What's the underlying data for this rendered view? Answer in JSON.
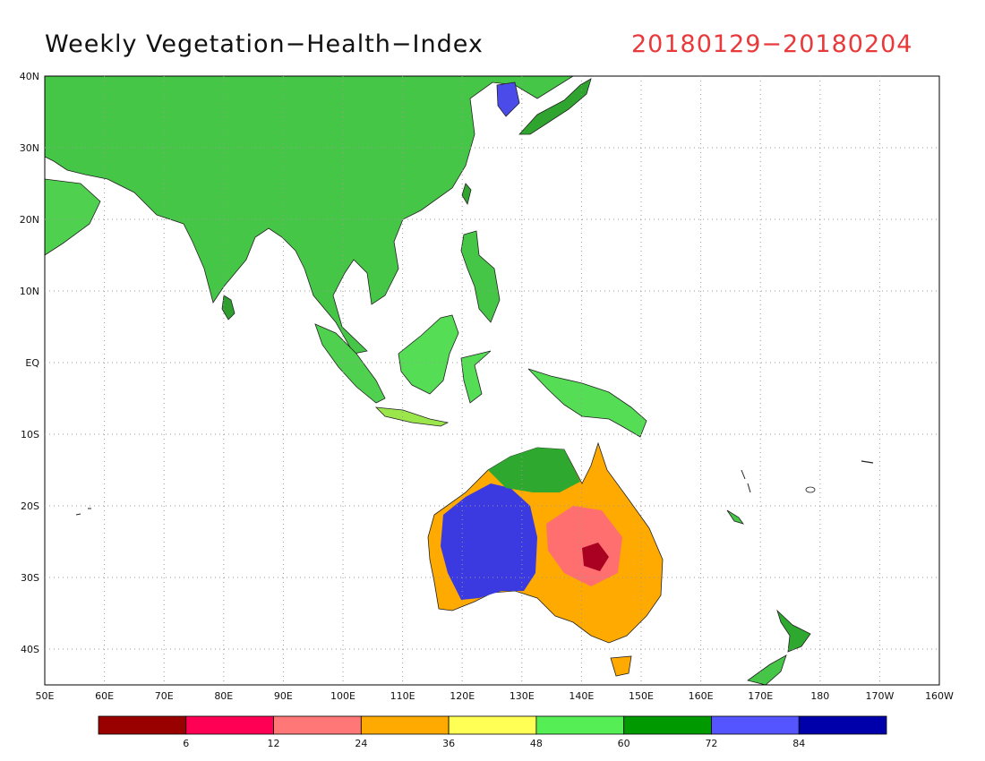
{
  "title": "Weekly Vegetation−Health−Index",
  "date_range": "20180129−20180204",
  "axes": {
    "lon_ticks": [
      "50E",
      "60E",
      "70E",
      "80E",
      "90E",
      "100E",
      "110E",
      "120E",
      "130E",
      "140E",
      "150E",
      "160E",
      "170E",
      "180",
      "170W",
      "160W"
    ],
    "lat_ticks": [
      "40N",
      "30N",
      "20N",
      "10N",
      "EQ",
      "10S",
      "20S",
      "30S",
      "40S"
    ]
  },
  "colorbar": {
    "colors": [
      "#990000",
      "#ff0055",
      "#ff7777",
      "#ffaa00",
      "#ffff55",
      "#55ee55",
      "#009900",
      "#5555ff",
      "#0000aa"
    ],
    "labels": [
      "6",
      "12",
      "24",
      "36",
      "48",
      "60",
      "72",
      "84"
    ]
  }
}
